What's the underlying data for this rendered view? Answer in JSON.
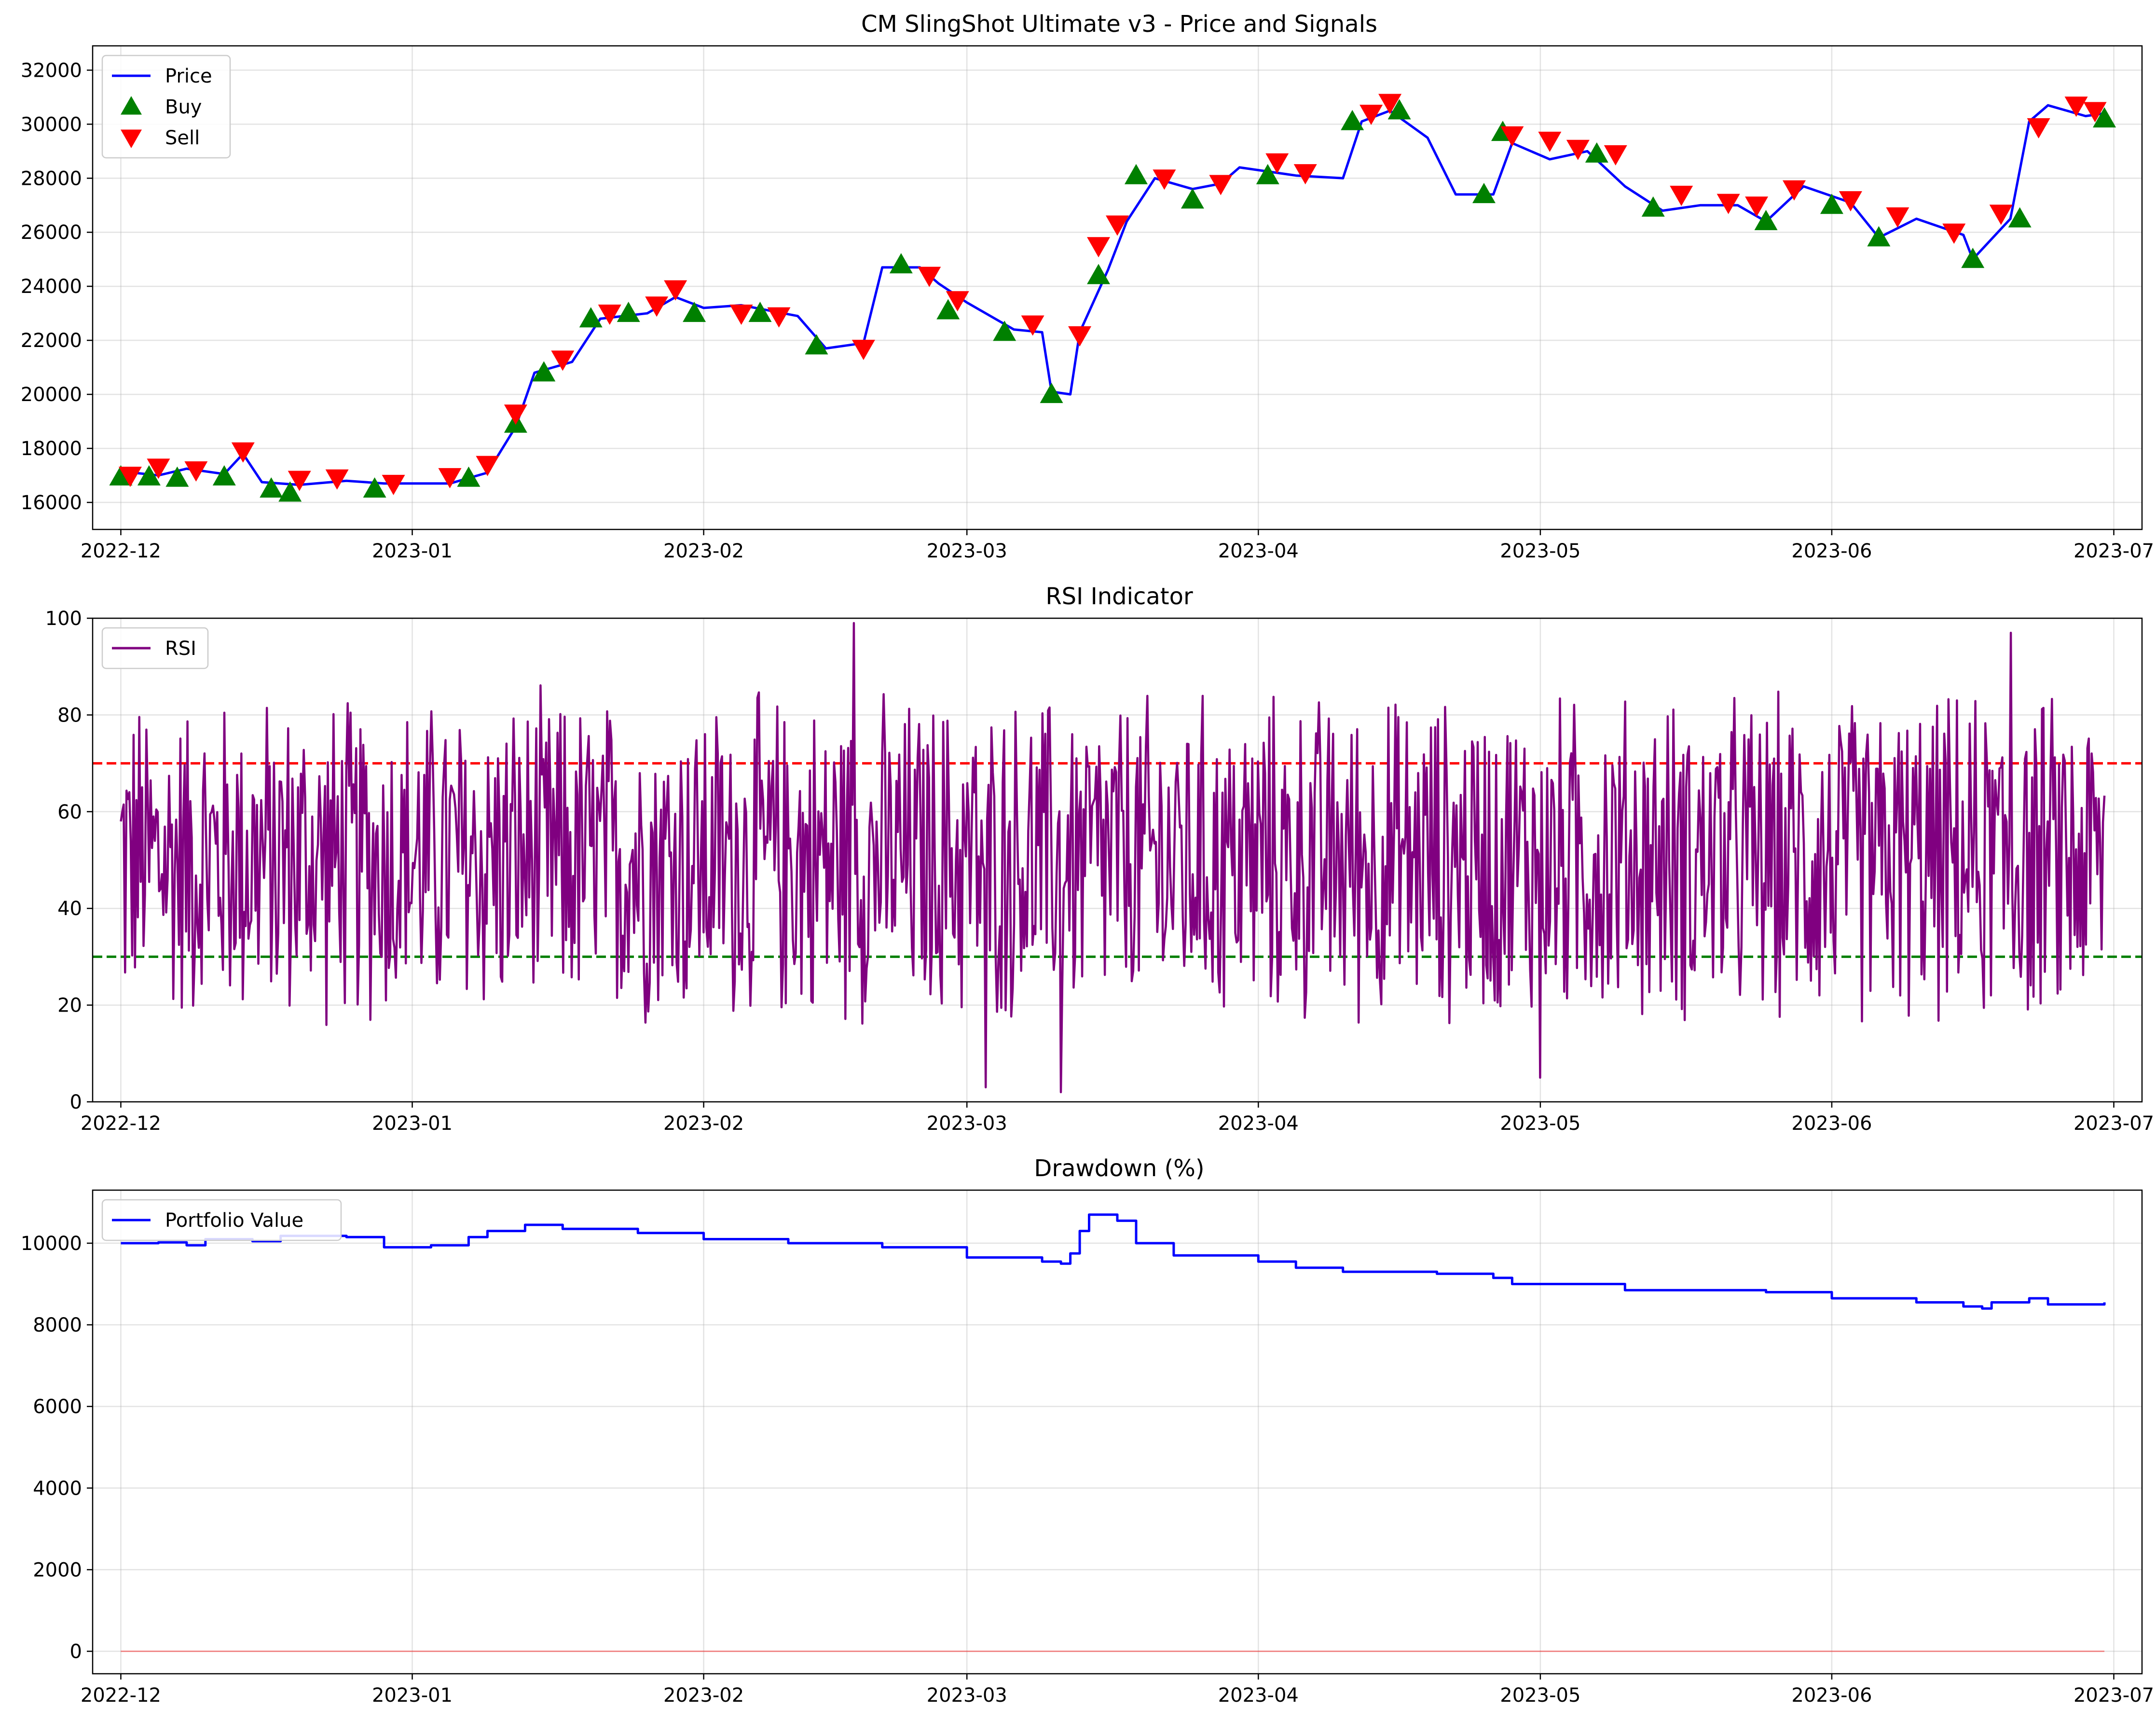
{
  "chart_data": [
    {
      "type": "line",
      "title": "CM SlingShot Ultimate v3 - Price and Signals",
      "x_ticks": [
        "2022-12",
        "2023-01",
        "2023-02",
        "2023-03",
        "2023-04",
        "2023-05",
        "2023-06",
        "2023-07"
      ],
      "x_range": [
        "2022-11-28",
        "2023-07-04"
      ],
      "ylim": [
        15000,
        32900
      ],
      "y_ticks": [
        16000,
        18000,
        20000,
        22000,
        24000,
        26000,
        28000,
        30000,
        32000
      ],
      "grid": true,
      "legend_position": "upper-left",
      "colors": {
        "price": "#0000ff",
        "buy": "#008000",
        "sell": "#ff0000"
      },
      "series": [
        {
          "name": "Price",
          "kind": "line",
          "color": "#0000ff",
          "points": [
            [
              "2022-12-01",
              17150
            ],
            [
              "2022-12-05",
              17000
            ],
            [
              "2022-12-08",
              17250
            ],
            [
              "2022-12-12",
              17050
            ],
            [
              "2022-12-14",
              17800
            ],
            [
              "2022-12-16",
              16750
            ],
            [
              "2022-12-20",
              16650
            ],
            [
              "2022-12-25",
              16800
            ],
            [
              "2022-12-29",
              16700
            ],
            [
              "2023-01-05",
              16700
            ],
            [
              "2023-01-09",
              17100
            ],
            [
              "2023-01-12",
              18800
            ],
            [
              "2023-01-14",
              20800
            ],
            [
              "2023-01-18",
              21200
            ],
            [
              "2023-01-21",
              22800
            ],
            [
              "2023-01-26",
              23000
            ],
            [
              "2023-01-29",
              23600
            ],
            [
              "2023-02-01",
              23200
            ],
            [
              "2023-02-05",
              23300
            ],
            [
              "2023-02-11",
              22900
            ],
            [
              "2023-02-14",
              21700
            ],
            [
              "2023-02-18",
              21900
            ],
            [
              "2023-02-20",
              24700
            ],
            [
              "2023-02-24",
              24700
            ],
            [
              "2023-02-26",
              24100
            ],
            [
              "2023-03-01",
              23400
            ],
            [
              "2023-03-06",
              22400
            ],
            [
              "2023-03-09",
              22300
            ],
            [
              "2023-03-10",
              20100
            ],
            [
              "2023-03-12",
              20000
            ],
            [
              "2023-03-13",
              22300
            ],
            [
              "2023-03-16",
              24600
            ],
            [
              "2023-03-18",
              26400
            ],
            [
              "2023-03-21",
              28000
            ],
            [
              "2023-03-25",
              27600
            ],
            [
              "2023-03-28",
              27800
            ],
            [
              "2023-03-30",
              28400
            ],
            [
              "2023-04-05",
              28100
            ],
            [
              "2023-04-10",
              28000
            ],
            [
              "2023-04-12",
              30100
            ],
            [
              "2023-04-15",
              30500
            ],
            [
              "2023-04-19",
              29500
            ],
            [
              "2023-04-22",
              27400
            ],
            [
              "2023-04-26",
              27400
            ],
            [
              "2023-04-28",
              29300
            ],
            [
              "2023-05-02",
              28700
            ],
            [
              "2023-05-06",
              29000
            ],
            [
              "2023-05-10",
              27700
            ],
            [
              "2023-05-14",
              26800
            ],
            [
              "2023-05-18",
              27000
            ],
            [
              "2023-05-22",
              27000
            ],
            [
              "2023-05-25",
              26400
            ],
            [
              "2023-05-29",
              27700
            ],
            [
              "2023-06-03",
              27100
            ],
            [
              "2023-06-06",
              25800
            ],
            [
              "2023-06-10",
              26500
            ],
            [
              "2023-06-15",
              25900
            ],
            [
              "2023-06-16",
              25000
            ],
            [
              "2023-06-20",
              26500
            ],
            [
              "2023-06-22",
              30100
            ],
            [
              "2023-06-24",
              30700
            ],
            [
              "2023-06-28",
              30300
            ],
            [
              "2023-06-30",
              30400
            ]
          ]
        },
        {
          "name": "Buy",
          "kind": "marker",
          "marker": "triangle-up",
          "color": "#008000",
          "points": [
            [
              "2022-12-01",
              16950
            ],
            [
              "2022-12-04",
              16950
            ],
            [
              "2022-12-07",
              16900
            ],
            [
              "2022-12-12",
              16950
            ],
            [
              "2022-12-17",
              16500
            ],
            [
              "2022-12-19",
              16350
            ],
            [
              "2022-12-28",
              16500
            ],
            [
              "2023-01-07",
              16900
            ],
            [
              "2023-01-12",
              18900
            ],
            [
              "2023-01-15",
              20800
            ],
            [
              "2023-01-20",
              22800
            ],
            [
              "2023-01-24",
              23000
            ],
            [
              "2023-01-31",
              23000
            ],
            [
              "2023-02-07",
              23000
            ],
            [
              "2023-02-13",
              21800
            ],
            [
              "2023-02-22",
              24800
            ],
            [
              "2023-02-27",
              23100
            ],
            [
              "2023-03-05",
              22300
            ],
            [
              "2023-03-10",
              20000
            ],
            [
              "2023-03-15",
              24400
            ],
            [
              "2023-03-19",
              28100
            ],
            [
              "2023-03-25",
              27200
            ],
            [
              "2023-04-02",
              28100
            ],
            [
              "2023-04-11",
              30100
            ],
            [
              "2023-04-16",
              30500
            ],
            [
              "2023-04-25",
              27400
            ],
            [
              "2023-04-27",
              29700
            ],
            [
              "2023-05-07",
              28900
            ],
            [
              "2023-05-13",
              26900
            ],
            [
              "2023-05-25",
              26400
            ],
            [
              "2023-06-01",
              27000
            ],
            [
              "2023-06-06",
              25800
            ],
            [
              "2023-06-16",
              25000
            ],
            [
              "2023-06-21",
              26500
            ],
            [
              "2023-06-30",
              30200
            ]
          ]
        },
        {
          "name": "Sell",
          "kind": "marker",
          "marker": "triangle-down",
          "color": "#ff0000",
          "points": [
            [
              "2022-12-02",
              17000
            ],
            [
              "2022-12-05",
              17300
            ],
            [
              "2022-12-09",
              17200
            ],
            [
              "2022-12-14",
              17900
            ],
            [
              "2022-12-20",
              16850
            ],
            [
              "2022-12-24",
              16900
            ],
            [
              "2022-12-30",
              16700
            ],
            [
              "2023-01-05",
              16950
            ],
            [
              "2023-01-09",
              17400
            ],
            [
              "2023-01-12",
              19300
            ],
            [
              "2023-01-17",
              21300
            ],
            [
              "2023-01-22",
              23000
            ],
            [
              "2023-01-27",
              23300
            ],
            [
              "2023-01-29",
              23900
            ],
            [
              "2023-02-05",
              23000
            ],
            [
              "2023-02-09",
              22900
            ],
            [
              "2023-02-18",
              21700
            ],
            [
              "2023-02-25",
              24400
            ],
            [
              "2023-02-28",
              23500
            ],
            [
              "2023-03-08",
              22600
            ],
            [
              "2023-03-13",
              22200
            ],
            [
              "2023-03-15",
              25500
            ],
            [
              "2023-03-17",
              26300
            ],
            [
              "2023-03-22",
              28000
            ],
            [
              "2023-03-28",
              27800
            ],
            [
              "2023-04-03",
              28600
            ],
            [
              "2023-04-06",
              28200
            ],
            [
              "2023-04-13",
              30400
            ],
            [
              "2023-04-15",
              30800
            ],
            [
              "2023-04-28",
              29600
            ],
            [
              "2023-05-02",
              29400
            ],
            [
              "2023-05-05",
              29100
            ],
            [
              "2023-05-09",
              28900
            ],
            [
              "2023-05-16",
              27400
            ],
            [
              "2023-05-21",
              27100
            ],
            [
              "2023-05-24",
              27000
            ],
            [
              "2023-05-28",
              27600
            ],
            [
              "2023-06-03",
              27200
            ],
            [
              "2023-06-08",
              26600
            ],
            [
              "2023-06-14",
              26000
            ],
            [
              "2023-06-19",
              26700
            ],
            [
              "2023-06-23",
              29900
            ],
            [
              "2023-06-27",
              30700
            ],
            [
              "2023-06-29",
              30500
            ]
          ]
        }
      ]
    },
    {
      "type": "line",
      "title": "RSI Indicator",
      "x_ticks": [
        "2022-12",
        "2023-01",
        "2023-02",
        "2023-03",
        "2023-04",
        "2023-05",
        "2023-06",
        "2023-07"
      ],
      "x_range": [
        "2022-11-28",
        "2023-07-04"
      ],
      "ylim": [
        0,
        100
      ],
      "y_ticks": [
        0,
        20,
        40,
        60,
        80,
        100
      ],
      "grid": true,
      "legend_position": "upper-left",
      "reference_lines": [
        {
          "y": 70,
          "color": "#ff0000",
          "style": "dashed"
        },
        {
          "y": 30,
          "color": "#008000",
          "style": "dashed"
        }
      ],
      "series": [
        {
          "name": "RSI",
          "color": "#800080",
          "start": "2022-12-01",
          "end": "2023-06-30",
          "points_count": 1400,
          "center": 50,
          "typical_range": [
            15,
            90
          ],
          "extremes": [
            {
              "x": "2023-02-17",
              "y": 99
            },
            {
              "x": "2023-03-03",
              "y": 3
            },
            {
              "x": "2023-03-11",
              "y": 2
            },
            {
              "x": "2023-06-20",
              "y": 97
            },
            {
              "x": "2023-05-01",
              "y": 5
            }
          ]
        }
      ]
    },
    {
      "type": "line",
      "title": "Drawdown (%)",
      "x_ticks": [
        "2022-12",
        "2023-01",
        "2023-02",
        "2023-03",
        "2023-04",
        "2023-05",
        "2023-06",
        "2023-07"
      ],
      "x_range": [
        "2022-11-28",
        "2023-07-04"
      ],
      "ylim": [
        -550,
        11300
      ],
      "y_ticks": [
        0,
        2000,
        4000,
        6000,
        8000,
        10000
      ],
      "grid": true,
      "legend_position": "upper-left",
      "series": [
        {
          "name": "Portfolio Value",
          "color": "#0000ff",
          "points": [
            [
              "2022-12-01",
              10000
            ],
            [
              "2022-12-05",
              10020
            ],
            [
              "2022-12-08",
              9950
            ],
            [
              "2022-12-10",
              10100
            ],
            [
              "2022-12-15",
              10050
            ],
            [
              "2022-12-18",
              10180
            ],
            [
              "2022-12-25",
              10150
            ],
            [
              "2022-12-29",
              9900
            ],
            [
              "2023-01-03",
              9950
            ],
            [
              "2023-01-07",
              10150
            ],
            [
              "2023-01-09",
              10300
            ],
            [
              "2023-01-13",
              10450
            ],
            [
              "2023-01-17",
              10350
            ],
            [
              "2023-01-25",
              10250
            ],
            [
              "2023-02-01",
              10100
            ],
            [
              "2023-02-10",
              10000
            ],
            [
              "2023-02-20",
              9900
            ],
            [
              "2023-03-01",
              9650
            ],
            [
              "2023-03-09",
              9550
            ],
            [
              "2023-03-11",
              9500
            ],
            [
              "2023-03-12",
              9750
            ],
            [
              "2023-03-13",
              10300
            ],
            [
              "2023-03-14",
              10700
            ],
            [
              "2023-03-17",
              10550
            ],
            [
              "2023-03-19",
              10000
            ],
            [
              "2023-03-23",
              9700
            ],
            [
              "2023-04-01",
              9550
            ],
            [
              "2023-04-05",
              9400
            ],
            [
              "2023-04-10",
              9300
            ],
            [
              "2023-04-20",
              9250
            ],
            [
              "2023-04-26",
              9150
            ],
            [
              "2023-04-28",
              9000
            ],
            [
              "2023-05-10",
              8850
            ],
            [
              "2023-05-25",
              8800
            ],
            [
              "2023-06-01",
              8650
            ],
            [
              "2023-06-10",
              8550
            ],
            [
              "2023-06-15",
              8450
            ],
            [
              "2023-06-17",
              8400
            ],
            [
              "2023-06-18",
              8550
            ],
            [
              "2023-06-22",
              8650
            ],
            [
              "2023-06-24",
              8500
            ],
            [
              "2023-06-30",
              8550
            ]
          ]
        },
        {
          "name": "",
          "color": "#ff0000",
          "constant": 0,
          "start": "2022-12-01",
          "end": "2023-06-30"
        }
      ]
    }
  ]
}
